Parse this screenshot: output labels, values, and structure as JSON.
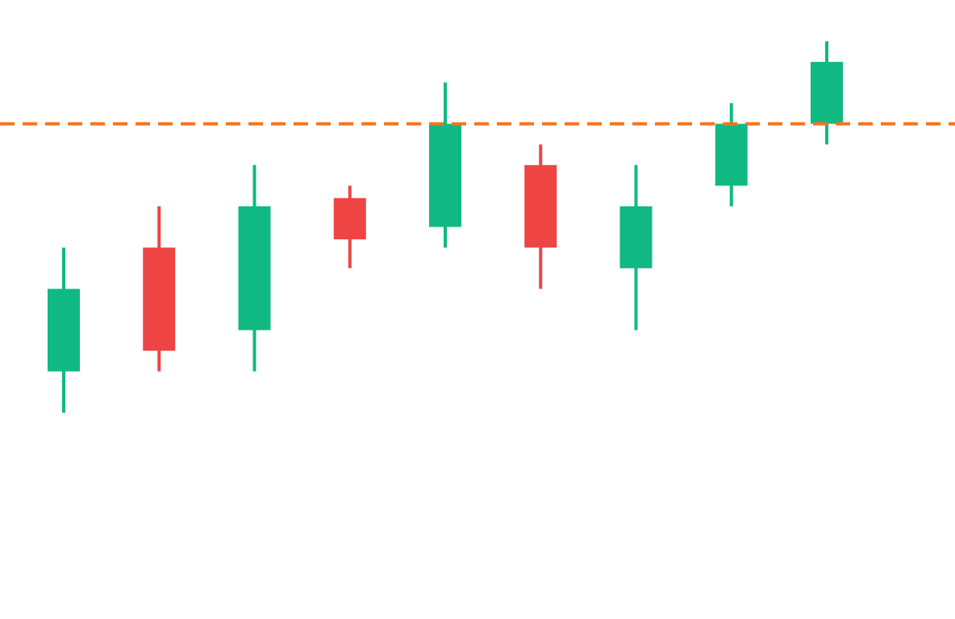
{
  "chart_data": {
    "type": "candlestick",
    "title": "",
    "xlabel": "",
    "ylabel": "",
    "ylim": [
      0,
      30
    ],
    "grid": false,
    "legend": "none",
    "colors": {
      "up": "#10b981",
      "down": "#ef4444",
      "reference_line": "#f97316",
      "background": "#ffffff"
    },
    "candles": [
      {
        "open": 12,
        "high": 18,
        "low": 10,
        "close": 16
      },
      {
        "open": 18,
        "high": 20,
        "low": 12,
        "close": 13
      },
      {
        "open": 14,
        "high": 22,
        "low": 12,
        "close": 20
      },
      {
        "open": 20.4,
        "high": 21,
        "low": 17,
        "close": 18.4
      },
      {
        "open": 19,
        "high": 26,
        "low": 18,
        "close": 24
      },
      {
        "open": 22,
        "high": 23,
        "low": 16,
        "close": 18
      },
      {
        "open": 17,
        "high": 22,
        "low": 14,
        "close": 20
      },
      {
        "open": 21,
        "high": 25,
        "low": 20,
        "close": 24
      },
      {
        "open": 24,
        "high": 28,
        "low": 23,
        "close": 27
      }
    ],
    "reference_line": {
      "value": 24,
      "style": "dashed"
    }
  }
}
